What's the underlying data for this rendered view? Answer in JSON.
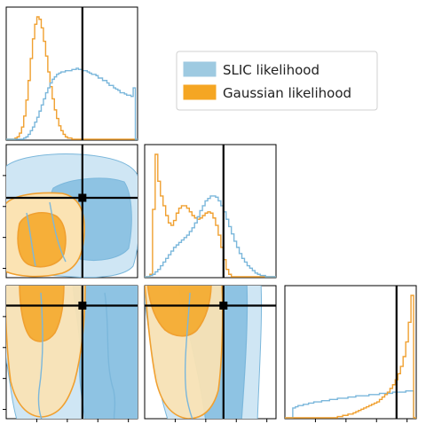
{
  "chart_data": {
    "type": "corner",
    "parameters": 3,
    "legend": {
      "placement": "top-right",
      "entries": [
        {
          "label": "SLIC likelihood",
          "color": "#9ecae1"
        },
        {
          "label": "Gaussian likelihood",
          "color": "#f5a623"
        }
      ]
    },
    "colors": {
      "slic_fill_outer": "#cfe6f4",
      "slic_fill_inner": "#8ec3e3",
      "slic_line": "#7bb7db",
      "gauss_fill_outer": "#fbe3b3",
      "gauss_fill_inner": "#f5a623",
      "gauss_line": "#f0a030",
      "truth": "#000000"
    },
    "truth_fraction": {
      "p1": 0.58,
      "p2": 0.6,
      "p3": 0.85
    },
    "hist_p1": {
      "slic": [
        0,
        0,
        0,
        0,
        0,
        0,
        0,
        0,
        0.01,
        0.02,
        0.04,
        0.07,
        0.1,
        0.14,
        0.18,
        0.23,
        0.28,
        0.33,
        0.38,
        0.42,
        0.46,
        0.49,
        0.51,
        0.53,
        0.54,
        0.55,
        0.55,
        0.56,
        0.56,
        0.56,
        0.57,
        0.57,
        0.58,
        0.57,
        0.57,
        0.56,
        0.56,
        0.55,
        0.54,
        0.53,
        0.53,
        0.52,
        0.5,
        0.5,
        0.48,
        0.48,
        0.46,
        0.44,
        0.44,
        0.42,
        0.41,
        0.4,
        0.38,
        0.38,
        0.37,
        0.36,
        0.36,
        0.35,
        0.42,
        0.0
      ],
      "gauss": [
        0,
        0,
        0,
        0,
        0.01,
        0.02,
        0.05,
        0.1,
        0.19,
        0.32,
        0.48,
        0.66,
        0.82,
        0.94,
        1.0,
        0.98,
        0.91,
        0.8,
        0.68,
        0.55,
        0.43,
        0.33,
        0.24,
        0.17,
        0.11,
        0.07,
        0.04,
        0.02,
        0.01,
        0.01,
        0,
        0,
        0,
        0,
        0,
        0,
        0,
        0,
        0,
        0,
        0,
        0,
        0,
        0,
        0,
        0,
        0,
        0,
        0,
        0,
        0,
        0,
        0,
        0,
        0,
        0,
        0,
        0,
        0,
        0
      ]
    },
    "hist_p2": {
      "slic": [
        0,
        0,
        0.01,
        0.02,
        0.04,
        0.06,
        0.09,
        0.12,
        0.15,
        0.18,
        0.21,
        0.24,
        0.26,
        0.28,
        0.3,
        0.32,
        0.34,
        0.37,
        0.4,
        0.44,
        0.49,
        0.54,
        0.58,
        0.62,
        0.64,
        0.66,
        0.66,
        0.65,
        0.62,
        0.58,
        0.53,
        0.47,
        0.41,
        0.35,
        0.29,
        0.24,
        0.19,
        0.15,
        0.12,
        0.09,
        0.07,
        0.05,
        0.03,
        0.02,
        0.01,
        0.01,
        0,
        0,
        0,
        0
      ],
      "gauss": [
        0,
        0,
        0.02,
        0.55,
        1.0,
        0.78,
        0.66,
        0.58,
        0.5,
        0.44,
        0.42,
        0.46,
        0.52,
        0.56,
        0.58,
        0.58,
        0.56,
        0.53,
        0.5,
        0.48,
        0.47,
        0.48,
        0.5,
        0.52,
        0.53,
        0.52,
        0.48,
        0.42,
        0.34,
        0.24,
        0.14,
        0.06,
        0.02,
        0,
        0,
        0,
        0,
        0,
        0,
        0,
        0,
        0,
        0,
        0,
        0,
        0,
        0,
        0,
        0,
        0
      ]
    },
    "hist_p3": {
      "slic": [
        0,
        0,
        0,
        0.08,
        0.09,
        0.1,
        0.1,
        0.11,
        0.11,
        0.12,
        0.12,
        0.13,
        0.13,
        0.13,
        0.14,
        0.14,
        0.14,
        0.15,
        0.15,
        0.15,
        0.16,
        0.16,
        0.16,
        0.16,
        0.17,
        0.17,
        0.17,
        0.18,
        0.18,
        0.18,
        0.18,
        0.18,
        0.19,
        0.19,
        0.19,
        0.19,
        0.2,
        0.2,
        0.2,
        0.2,
        0.2,
        0.21,
        0.21,
        0.21,
        0.21,
        0.21,
        0.22,
        0.22,
        0.22,
        0.0
      ],
      "gauss": [
        0,
        0,
        0,
        0,
        0,
        0,
        0,
        0,
        0,
        0,
        0,
        0,
        0,
        0,
        0,
        0,
        0,
        0,
        0,
        0,
        0.01,
        0.01,
        0.02,
        0.02,
        0.03,
        0.03,
        0.04,
        0.05,
        0.06,
        0.07,
        0.08,
        0.09,
        0.1,
        0.11,
        0.12,
        0.13,
        0.15,
        0.17,
        0.19,
        0.21,
        0.24,
        0.27,
        0.31,
        0.36,
        0.42,
        0.5,
        0.62,
        0.78,
        1.0,
        0.0
      ]
    }
  }
}
